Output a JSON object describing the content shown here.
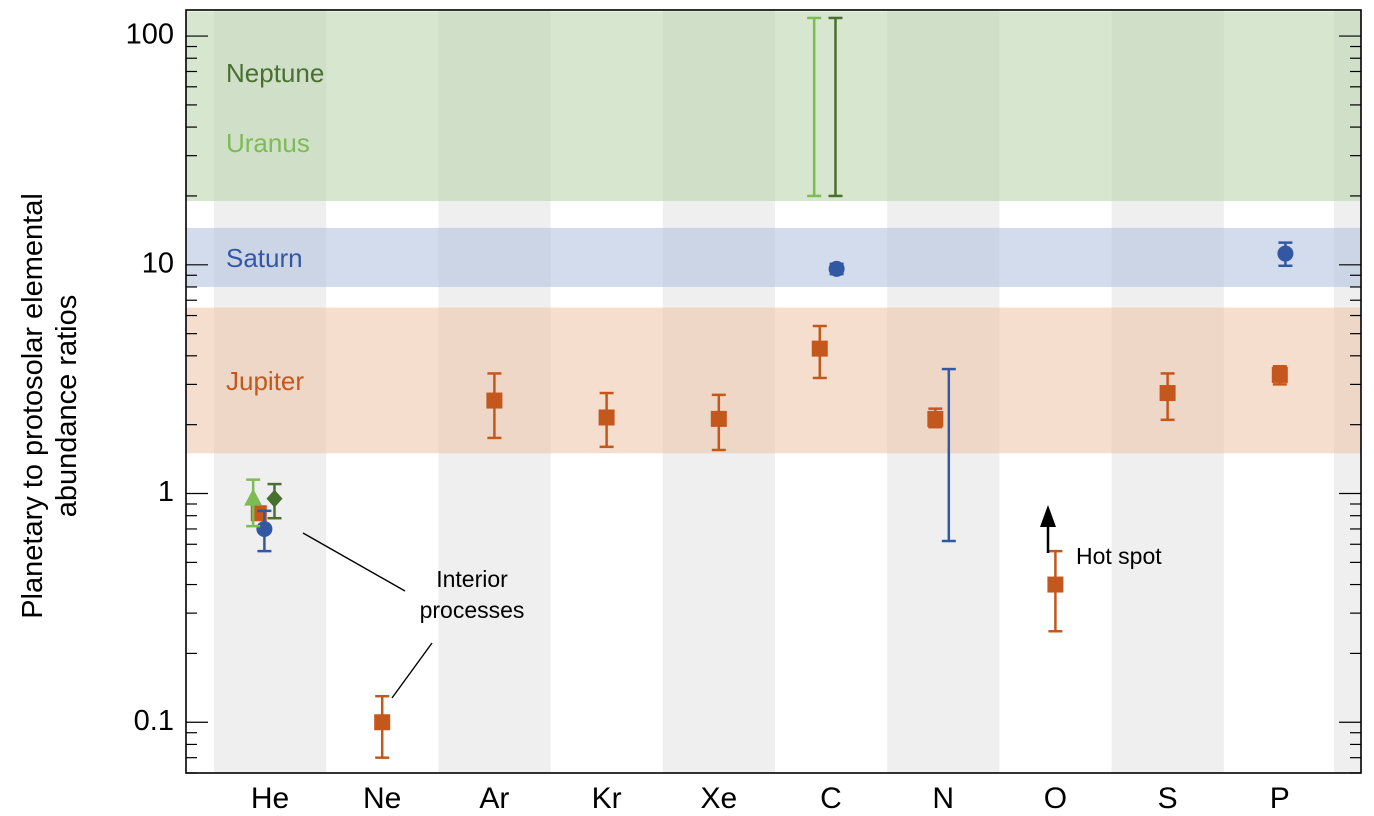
{
  "chart_data": {
    "type": "scatter",
    "title": "",
    "xlabel": "",
    "ylabel_lines": [
      "Planetary to protosolar elemental",
      "abundance ratios"
    ],
    "yscale": "log",
    "ylim": [
      0.06,
      130
    ],
    "y_ticks": [
      {
        "value": 0.1,
        "label": "0.1"
      },
      {
        "value": 1,
        "label": "1"
      },
      {
        "value": 10,
        "label": "10"
      },
      {
        "value": 100,
        "label": "100"
      }
    ],
    "categories": [
      "He",
      "Ne",
      "Ar",
      "Kr",
      "Xe",
      "C",
      "N",
      "O",
      "S",
      "P"
    ],
    "bands": [
      {
        "name": "Neptune",
        "range": [
          19,
          128
        ],
        "color": "#b5d1a8",
        "label_color": "#4a7030"
      },
      {
        "name": "Uranus",
        "range": [
          19,
          128
        ],
        "color": "#b5d1a8",
        "label_color": "#7dbb55"
      },
      {
        "name": "Saturn",
        "range": [
          8,
          14.5
        ],
        "color": "#aebfdc",
        "label_color": "#3358a3"
      },
      {
        "name": "Jupiter",
        "range": [
          1.5,
          6.5
        ],
        "color": "#eec3a6",
        "label_color": "#c4571c"
      }
    ],
    "series": [
      {
        "name": "Jupiter",
        "color": "#c4571c",
        "marker": "square",
        "points": [
          {
            "x": "He",
            "y": 0.82,
            "low": 0.82,
            "high": 0.82,
            "offset": -0.1
          },
          {
            "x": "Ne",
            "y": 0.1,
            "low": 0.07,
            "high": 0.13,
            "offset": 0
          },
          {
            "x": "Ar",
            "y": 2.55,
            "low": 1.75,
            "high": 3.35,
            "offset": 0
          },
          {
            "x": "Kr",
            "y": 2.15,
            "low": 1.6,
            "high": 2.75,
            "offset": 0
          },
          {
            "x": "Xe",
            "y": 2.12,
            "low": 1.55,
            "high": 2.7,
            "offset": 0
          },
          {
            "x": "C",
            "y": 4.3,
            "low": 3.2,
            "high": 5.4,
            "offset": -0.1
          },
          {
            "x": "N",
            "y": 2.12,
            "low": 1.95,
            "high": 2.35,
            "offset": -0.07
          },
          {
            "x": "O",
            "y": 0.4,
            "low": 0.25,
            "high": 0.56,
            "offset": 0
          },
          {
            "x": "S",
            "y": 2.75,
            "low": 2.1,
            "high": 3.35,
            "offset": 0
          },
          {
            "x": "P",
            "y": 3.3,
            "low": 3.0,
            "high": 3.6,
            "offset": 0
          }
        ]
      },
      {
        "name": "Saturn",
        "color": "#3358a3",
        "marker": "circle",
        "points": [
          {
            "x": "He",
            "y": 0.7,
            "low": 0.56,
            "high": 0.84,
            "offset": -0.05
          },
          {
            "x": "C",
            "y": 9.6,
            "low": 9.1,
            "high": 10.1,
            "offset": 0.05
          },
          {
            "x": "N",
            "y": 3.5,
            "low": 0.62,
            "high": 3.5,
            "offset": 0.05,
            "errorbar_only": true
          },
          {
            "x": "P",
            "y": 11.2,
            "low": 9.9,
            "high": 12.5,
            "offset": 0.05
          }
        ]
      },
      {
        "name": "Uranus",
        "color": "#7dbb55",
        "marker": "triangle",
        "points": [
          {
            "x": "He",
            "y": 0.95,
            "low": 0.72,
            "high": 1.15,
            "offset": -0.15
          },
          {
            "x": "C",
            "y": 50,
            "low": 20,
            "high": 120,
            "offset": -0.15,
            "errorbar_only": true
          }
        ]
      },
      {
        "name": "Neptune",
        "color": "#4a7030",
        "marker": "diamond",
        "points": [
          {
            "x": "He",
            "y": 0.95,
            "low": 0.78,
            "high": 1.1,
            "offset": 0.04
          },
          {
            "x": "C",
            "y": 50,
            "low": 20,
            "high": 120,
            "offset": 0.04,
            "errorbar_only": true
          }
        ]
      }
    ],
    "annotations": {
      "interior_lines": [
        "Interior",
        "processes"
      ],
      "hot_spot": "Hot spot"
    },
    "colors": {
      "column_shade": "#efefef",
      "axis": "#000000"
    }
  }
}
